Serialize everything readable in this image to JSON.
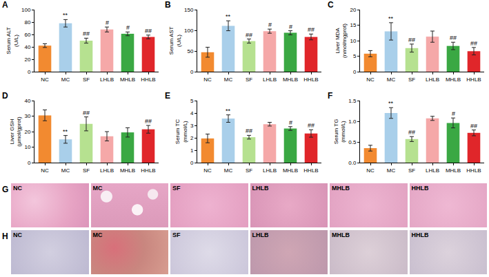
{
  "chart_data": [
    {
      "type": "bar",
      "title": "A",
      "y_label": "Serum ALT (U/L)",
      "categories": [
        "NC",
        "MC",
        "SF",
        "LHLB",
        "MHLB",
        "HHLB"
      ],
      "values": [
        42,
        78,
        50,
        68,
        61,
        56
      ],
      "errors": [
        3,
        6,
        4,
        4,
        3,
        3
      ],
      "colors": [
        "#f28a30",
        "#a9cfea",
        "#b6e190",
        "#f5a8a8",
        "#3aa843",
        "#e0262a"
      ],
      "ylim": [
        0,
        100
      ],
      "yticks": [
        0,
        20,
        40,
        60,
        80,
        100
      ],
      "annotations": [
        {
          "category": "MC",
          "text": "**"
        },
        {
          "category": "SF",
          "text": "##"
        },
        {
          "category": "LHLB",
          "text": "#"
        },
        {
          "category": "MHLB",
          "text": "#"
        },
        {
          "category": "HHLB",
          "text": "##"
        }
      ],
      "grid": false
    },
    {
      "type": "bar",
      "title": "B",
      "y_label": "Serum AST (U/L)",
      "categories": [
        "NC",
        "MC",
        "SF",
        "LHLB",
        "MHLB",
        "HHLB"
      ],
      "values": [
        47,
        111,
        74,
        98,
        94,
        84
      ],
      "errors": [
        12,
        12,
        5,
        5,
        5,
        7
      ],
      "colors": [
        "#f28a30",
        "#a9cfea",
        "#b6e190",
        "#f5a8a8",
        "#3aa843",
        "#e0262a"
      ],
      "ylim": [
        0,
        150
      ],
      "yticks": [
        0,
        50,
        100,
        150
      ],
      "annotations": [
        {
          "category": "MC",
          "text": "**"
        },
        {
          "category": "SF",
          "text": "##"
        },
        {
          "category": "LHLB",
          "text": "#"
        },
        {
          "category": "MHLB",
          "text": "#"
        },
        {
          "category": "HHLB",
          "text": "##"
        }
      ],
      "grid": false
    },
    {
      "type": "bar",
      "title": "C",
      "y_label": "Liver MDA (nmol/mgprot)",
      "categories": [
        "NC",
        "MC",
        "SF",
        "LHLB",
        "MHLB",
        "HHLB"
      ],
      "values": [
        5.8,
        13,
        7.6,
        11.3,
        8.3,
        6.6
      ],
      "errors": [
        1,
        2.8,
        1.3,
        1.8,
        1.2,
        1.2
      ],
      "colors": [
        "#f28a30",
        "#a9cfea",
        "#b6e190",
        "#f5a8a8",
        "#3aa843",
        "#e0262a"
      ],
      "ylim": [
        0,
        20
      ],
      "yticks": [
        0,
        5,
        10,
        15,
        20
      ],
      "annotations": [
        {
          "category": "MC",
          "text": "**"
        },
        {
          "category": "SF",
          "text": "##"
        },
        {
          "category": "MHLB",
          "text": "##"
        },
        {
          "category": "HHLB",
          "text": "##"
        }
      ],
      "grid": false
    },
    {
      "type": "bar",
      "title": "D",
      "y_label": "Liver GSH (μmol/gprot)",
      "categories": [
        "NC",
        "MC",
        "SF",
        "LHLB",
        "MHLB",
        "HHLB"
      ],
      "values": [
        30.5,
        15,
        25,
        17,
        19.5,
        21.5
      ],
      "errors": [
        3.5,
        2.5,
        4.5,
        3,
        3,
        2.5
      ],
      "colors": [
        "#f28a30",
        "#a9cfea",
        "#b6e190",
        "#f5a8a8",
        "#3aa843",
        "#e0262a"
      ],
      "ylim": [
        0,
        40
      ],
      "yticks": [
        0,
        10,
        20,
        30,
        40
      ],
      "annotations": [
        {
          "category": "MC",
          "text": "**"
        },
        {
          "category": "SF",
          "text": "##"
        },
        {
          "category": "HHLB",
          "text": "##"
        }
      ],
      "grid": false
    },
    {
      "type": "bar",
      "title": "E",
      "y_label": "Serum TC (mmol/L)",
      "categories": [
        "NC",
        "MC",
        "SF",
        "LHLB",
        "MHLB",
        "HHLB"
      ],
      "values": [
        1.95,
        3.55,
        2.05,
        3.1,
        2.75,
        2.35
      ],
      "errors": [
        0.35,
        0.3,
        0.15,
        0.15,
        0.15,
        0.3
      ],
      "colors": [
        "#f28a30",
        "#a9cfea",
        "#b6e190",
        "#f5a8a8",
        "#3aa843",
        "#e0262a"
      ],
      "ylim": [
        0,
        5
      ],
      "yticks": [
        0,
        1,
        2,
        3,
        4,
        5
      ],
      "annotations": [
        {
          "category": "MC",
          "text": "**"
        },
        {
          "category": "SF",
          "text": "##"
        },
        {
          "category": "MHLB",
          "text": "#"
        },
        {
          "category": "HHLB",
          "text": "##"
        }
      ],
      "grid": false
    },
    {
      "type": "bar",
      "title": "F",
      "y_label": "Serum TG (mmol/L)",
      "categories": [
        "NC",
        "MC",
        "SF",
        "LHLB",
        "MHLB",
        "HHLB"
      ],
      "values": [
        0.35,
        1.2,
        0.57,
        1.07,
        0.96,
        0.72
      ],
      "errors": [
        0.07,
        0.13,
        0.06,
        0.05,
        0.12,
        0.07
      ],
      "colors": [
        "#f28a30",
        "#a9cfea",
        "#b6e190",
        "#f5a8a8",
        "#3aa843",
        "#e0262a"
      ],
      "ylim": [
        0,
        1.5
      ],
      "yticks": [
        {
          "value": 0,
          "label": "0.0"
        },
        0.5,
        {
          "value": 1,
          "label": "1.0"
        },
        1.5
      ],
      "annotations": [
        {
          "category": "MC",
          "text": "**"
        },
        {
          "category": "SF",
          "text": "##"
        },
        {
          "category": "MHLB",
          "text": "#"
        },
        {
          "category": "HHLB",
          "text": "##"
        }
      ],
      "grid": false
    }
  ],
  "image_rows": [
    {
      "label": "G",
      "images": [
        "NC",
        "MC",
        "SF",
        "LHLB",
        "MHLB",
        "HHLB"
      ]
    },
    {
      "label": "H",
      "images": [
        "NC",
        "MC",
        "SF",
        "LHLB",
        "MHLB",
        "HHLB"
      ]
    }
  ]
}
